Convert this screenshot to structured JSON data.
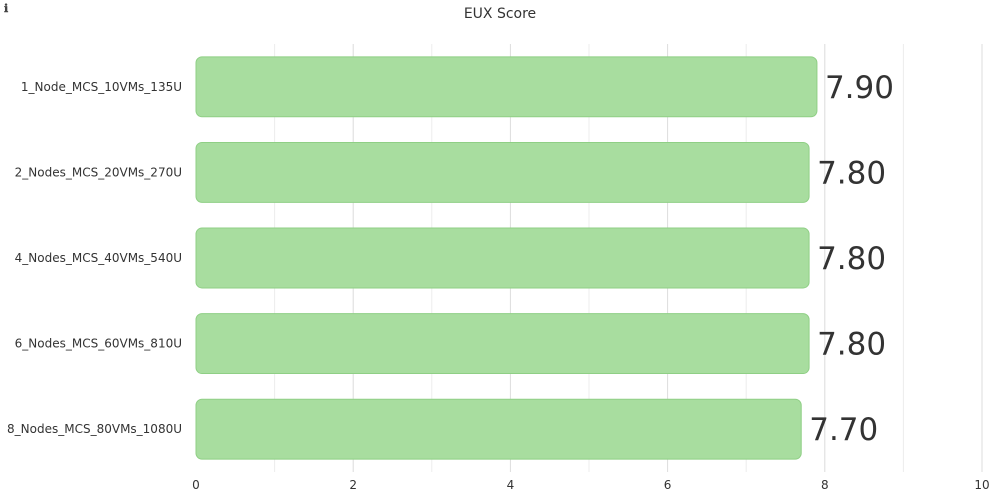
{
  "panel": {
    "title": "EUX Score",
    "info_icon": "info-icon",
    "info_glyph": "ℹ"
  },
  "chart_data": {
    "type": "bar",
    "orientation": "horizontal",
    "title": "EUX Score",
    "categories": [
      "1_Node_MCS_10VMs_135U",
      "2_Nodes_MCS_20VMs_270U",
      "4_Nodes_MCS_40VMs_540U",
      "6_Nodes_MCS_60VMs_810U",
      "8_Nodes_MCS_80VMs_1080U"
    ],
    "values": [
      7.9,
      7.8,
      7.8,
      7.8,
      7.7
    ],
    "value_labels": [
      "7.90",
      "7.80",
      "7.80",
      "7.80",
      "7.70"
    ],
    "xlim": [
      0,
      10
    ],
    "x_ticks": [
      0,
      2,
      4,
      6,
      8,
      10
    ],
    "grid": true,
    "bar_color": "#a8dd9f",
    "bar_border_color": "#8fcf85"
  }
}
